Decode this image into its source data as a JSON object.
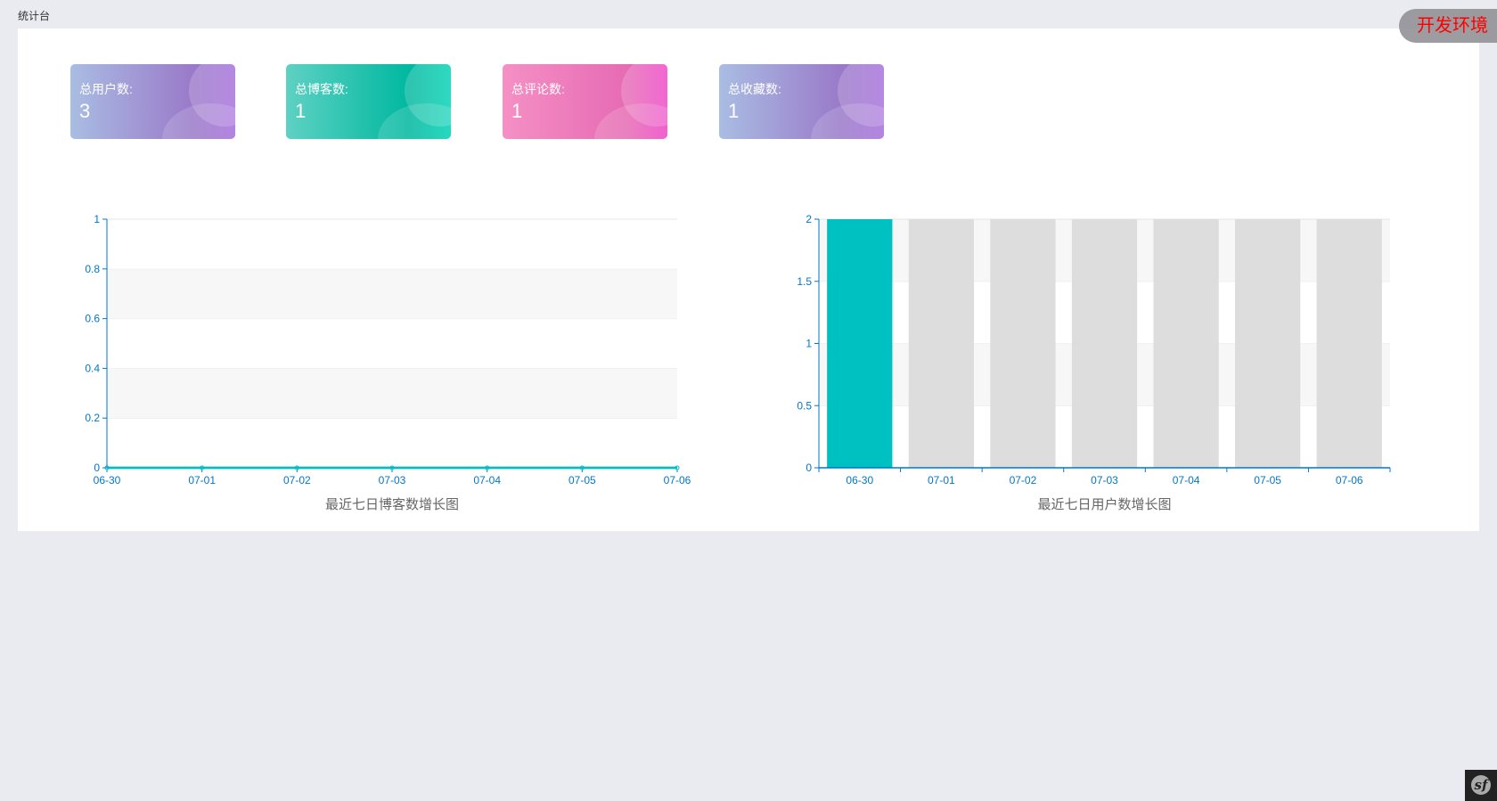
{
  "breadcrumb": "统计台",
  "env_badge": "开发环境",
  "cards": [
    {
      "label": "总用户数:",
      "value": "3"
    },
    {
      "label": "总博客数:",
      "value": "1"
    },
    {
      "label": "总评论数:",
      "value": "1"
    },
    {
      "label": "总收藏数:",
      "value": "1"
    }
  ],
  "colors": {
    "axis": "#0077c8",
    "line": "#00bfc1",
    "bar_highlight": "#00c1c1",
    "bar_shadow": "#dddddd"
  },
  "chart_data": [
    {
      "type": "line",
      "title": "最近七日博客数增长图",
      "categories": [
        "06-30",
        "07-01",
        "07-02",
        "07-03",
        "07-04",
        "07-05",
        "07-06"
      ],
      "values": [
        0,
        0,
        0,
        0,
        0,
        0,
        0
      ],
      "ylim": [
        0,
        1
      ],
      "yticks": [
        "0",
        "0.2",
        "0.4",
        "0.6",
        "0.8",
        "1"
      ],
      "grid": true
    },
    {
      "type": "bar",
      "title": "最近七日用户数增长图",
      "categories": [
        "06-30",
        "07-01",
        "07-02",
        "07-03",
        "07-04",
        "07-05",
        "07-06"
      ],
      "values": [
        2,
        0,
        0,
        0,
        0,
        0,
        0
      ],
      "background_bar_max": 2,
      "ylim": [
        0,
        2
      ],
      "yticks": [
        "0",
        "0.5",
        "1",
        "1.5",
        "2"
      ],
      "grid": true
    }
  ],
  "toolbar_icon": "symfony-icon"
}
